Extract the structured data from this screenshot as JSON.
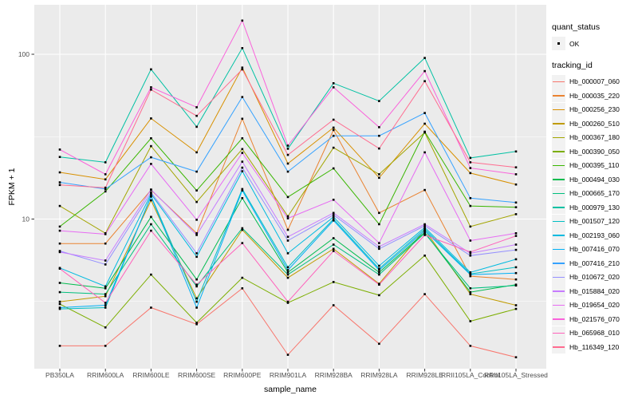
{
  "chart_data": {
    "type": "line",
    "title": "",
    "xlabel": "sample_name",
    "ylabel": "FPKM + 1",
    "y_scale": "log10",
    "y_ticks": [
      10,
      100
    ],
    "y_tick_labels": [
      "10",
      "100"
    ],
    "y_minor_ticks": [
      3.162,
      31.62
    ],
    "ylim": [
      1.3,
      200
    ],
    "grid": true,
    "panel_bg": "#EBEBEB",
    "grid_color": "#FFFFFF",
    "point_color": "#000000",
    "tick_text_color": "#4D4D4D",
    "legend_position": "right",
    "categories": [
      "PB350LA",
      "RRIM600LA",
      "RRIM600LE",
      "RRIM600SE",
      "RRIM600PE",
      "RRIM901LA",
      "RRIM928BA",
      "RRIM928LA",
      "RRIM928LE",
      "RRII105LA_Control",
      "RRII105LA_Stressed"
    ],
    "series": [
      {
        "name": "Hb_000007_060",
        "color": "#F8766D",
        "values": [
          1.7,
          1.7,
          2.9,
          2.3,
          3.8,
          1.5,
          3.0,
          1.75,
          3.5,
          1.7,
          1.45
        ]
      },
      {
        "name": "Hb_000035_220",
        "color": "#EA8331",
        "values": [
          7.1,
          7.1,
          15.0,
          8.2,
          40.6,
          8.6,
          34.7,
          10.9,
          15.0,
          4.5,
          4.3
        ]
      },
      {
        "name": "Hb_000256_230",
        "color": "#D89000",
        "values": [
          19.2,
          17.4,
          40.8,
          25.4,
          83,
          21.7,
          35.9,
          17.8,
          37.9,
          19.0,
          16.2
        ]
      },
      {
        "name": "Hb_000260_510",
        "color": "#C09B00",
        "values": [
          3.15,
          3.4,
          13.0,
          3.3,
          8.6,
          4.4,
          6.6,
          4.05,
          8.6,
          3.5,
          3.0
        ]
      },
      {
        "name": "Hb_000367_180",
        "color": "#A3A500",
        "values": [
          12.0,
          8.2,
          27.7,
          12.7,
          26.6,
          10.4,
          27.1,
          18.7,
          33.5,
          9.0,
          10.7
        ]
      },
      {
        "name": "Hb_000390_050",
        "color": "#7CAE00",
        "values": [
          3.05,
          2.2,
          4.6,
          2.35,
          4.4,
          3.1,
          4.15,
          3.45,
          6.0,
          2.4,
          2.85
        ]
      },
      {
        "name": "Hb_000395_110",
        "color": "#39B600",
        "values": [
          9.0,
          14.7,
          30.9,
          14.9,
          30.9,
          13.6,
          20.3,
          9.3,
          33.9,
          12.0,
          11.8
        ]
      },
      {
        "name": "Hb_000494_030",
        "color": "#00BB4E",
        "values": [
          4.1,
          3.8,
          10.3,
          4.3,
          13.4,
          4.75,
          7.65,
          4.75,
          8.3,
          3.6,
          4.0
        ]
      },
      {
        "name": "Hb_000665_170",
        "color": "#00BF7D",
        "values": [
          3.6,
          3.5,
          9.3,
          3.9,
          8.8,
          4.6,
          7.0,
          4.6,
          8.2,
          3.8,
          3.95
        ]
      },
      {
        "name": "Hb_000979_130",
        "color": "#00C1A3",
        "values": [
          23.8,
          22.1,
          81,
          36.3,
          109,
          26.7,
          66.7,
          52,
          95,
          23.5,
          25.7
        ]
      },
      {
        "name": "Hb_001507_120",
        "color": "#00BFC4",
        "values": [
          2.85,
          2.9,
          13.8,
          3.15,
          15.2,
          5.1,
          10.0,
          5.0,
          8.7,
          4.65,
          5.1
        ]
      },
      {
        "name": "Hb_002193_060",
        "color": "#00BAE0",
        "values": [
          5.05,
          3.9,
          14.2,
          5.9,
          19.5,
          6.2,
          10.3,
          5.2,
          8.9,
          4.75,
          5.7
        ]
      },
      {
        "name": "Hb_007416_070",
        "color": "#00B0F6",
        "values": [
          2.9,
          3.0,
          13.7,
          2.9,
          14.9,
          4.9,
          9.8,
          4.9,
          8.5,
          4.6,
          4.7
        ]
      },
      {
        "name": "Hb_007416_210",
        "color": "#35A2FF",
        "values": [
          16.7,
          15.2,
          23.7,
          19.4,
          55,
          19.4,
          32,
          32,
          44,
          13.4,
          12.6
        ]
      },
      {
        "name": "Hb_010672_020",
        "color": "#9590FF",
        "values": [
          6.4,
          5.3,
          14.5,
          6.2,
          20.5,
          7.4,
          10.6,
          6.6,
          9.1,
          6.0,
          6.5
        ]
      },
      {
        "name": "Hb_015884_020",
        "color": "#C77CFF",
        "values": [
          6.3,
          5.6,
          15.1,
          8.0,
          22.3,
          7.8,
          10.9,
          6.8,
          9.3,
          6.2,
          7.0
        ]
      },
      {
        "name": "Hb_019654_020",
        "color": "#E76BF3",
        "values": [
          8.5,
          8.1,
          21.6,
          9.9,
          25.2,
          10.1,
          13.1,
          7.15,
          25.4,
          7.4,
          8.2
        ]
      },
      {
        "name": "Hb_021576_070",
        "color": "#FA62DB",
        "values": [
          26.4,
          18.7,
          63,
          47.7,
          160,
          27.9,
          63,
          36.1,
          79,
          20.4,
          18.7
        ]
      },
      {
        "name": "Hb_065968_010",
        "color": "#FF62BC",
        "values": [
          5.0,
          3.1,
          8.5,
          4.0,
          7.15,
          3.15,
          6.4,
          4.0,
          8.0,
          6.3,
          7.9
        ]
      },
      {
        "name": "Hb_116349_120",
        "color": "#FF6C90",
        "values": [
          16.1,
          15.5,
          61,
          42.3,
          81,
          24.5,
          40.1,
          26.8,
          68.7,
          22.1,
          20.6
        ]
      }
    ]
  },
  "legend": {
    "quant_status": {
      "title": "quant_status",
      "items": [
        {
          "label": "OK",
          "symbol": "point-icon"
        }
      ]
    },
    "tracking": {
      "title": "tracking_id"
    }
  }
}
